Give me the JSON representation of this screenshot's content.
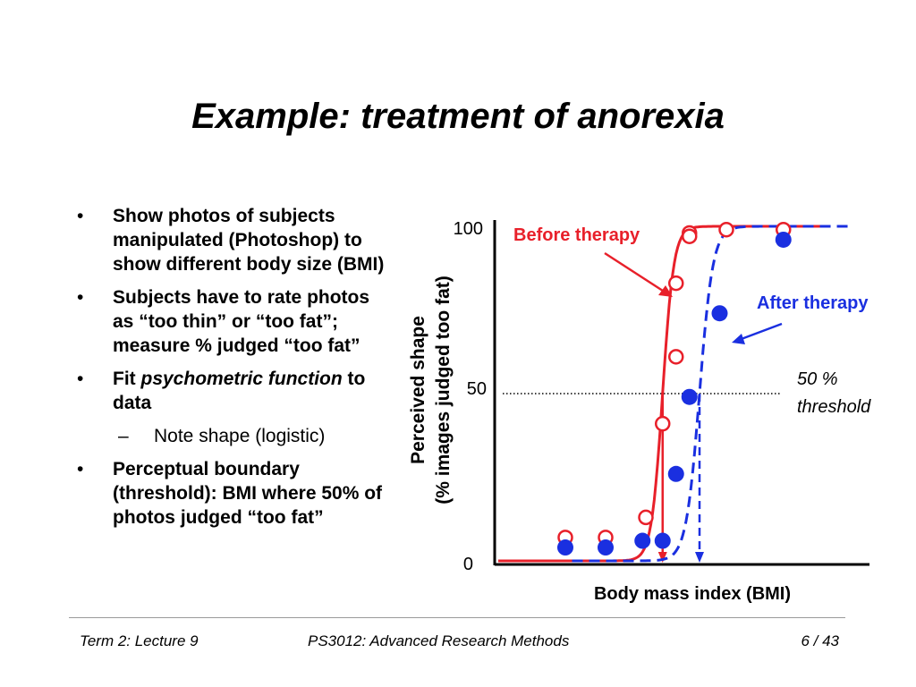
{
  "slide": {
    "title": "Example: treatment of anorexia"
  },
  "bullets": {
    "b1": "Show photos of subjects manipulated (Photoshop) to show different body size (BMI)",
    "b2": "Subjects have to rate photos as “too thin” or “too fat”; measure % judged “too fat”",
    "b3_pre": "Fit ",
    "b3_italic": "psychometric function",
    "b3_post": " to data",
    "sub1": "Note shape (logistic)",
    "b4": "Perceptual boundary (threshold): BMI where 50% of photos judged “too fat”"
  },
  "chart_data": {
    "type": "scatter",
    "xlabel": "Body mass index (BMI)",
    "ylabel_line1": "Perceived shape",
    "ylabel_line2": "(% images judged too fat)",
    "y_ticks": [
      "0",
      "50",
      "100"
    ],
    "ylim": [
      0,
      100
    ],
    "xlim": [
      0,
      10
    ],
    "threshold_label_line1": "50 %",
    "threshold_label_line2": "threshold",
    "threshold_y": 50,
    "series": [
      {
        "name": "Before therapy",
        "color": "#e8202a",
        "marker": "open-circle",
        "line": "solid",
        "threshold_x": 4.9,
        "x": [
          2.0,
          3.2,
          4.4,
          4.9,
          5.3,
          5.3,
          5.7,
          5.7,
          6.8,
          8.5
        ],
        "y": [
          7,
          7,
          13,
          41,
          61,
          83,
          98,
          97,
          99,
          99
        ]
      },
      {
        "name": "After therapy",
        "color": "#1a2fe0",
        "marker": "filled-circle",
        "line": "dashed",
        "threshold_x": 6.0,
        "x": [
          2.0,
          3.2,
          4.3,
          4.9,
          5.3,
          5.7,
          6.6,
          8.5
        ],
        "y": [
          4,
          4,
          6,
          6,
          26,
          49,
          74,
          96
        ]
      }
    ]
  }
}
